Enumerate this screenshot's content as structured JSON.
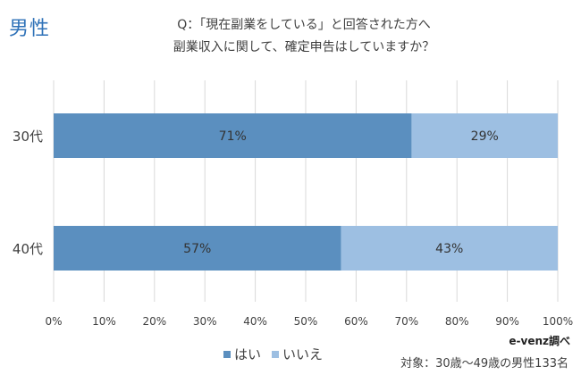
{
  "header": {
    "corner_label": "男性",
    "title_line1": "Q：「現在副業をしている」と回答された方へ",
    "title_line2": "副業収入に関して、確定申告はしていますか？"
  },
  "footer": {
    "source": "e-venz調べ",
    "target": "対象：30歳～49歳の男性133名"
  },
  "chart_data": {
    "type": "bar",
    "orientation": "horizontal",
    "stacked": true,
    "title": "Q：「現在副業をしている」と回答された方へ 副業収入に関して、確定申告はしていますか？",
    "categories": [
      "30代",
      "40代"
    ],
    "series": [
      {
        "name": "はい",
        "values": [
          71,
          57
        ],
        "labels": [
          "71%",
          "57%"
        ],
        "color": "#5b8fbf"
      },
      {
        "name": "いいえ",
        "values": [
          29,
          43
        ],
        "labels": [
          "29%",
          "43%"
        ],
        "color": "#9dbfe2"
      }
    ],
    "xlim": [
      0,
      100
    ],
    "x_ticks": [
      "0%",
      "10%",
      "20%",
      "30%",
      "40%",
      "50%",
      "60%",
      "70%",
      "80%",
      "90%",
      "100%"
    ],
    "grid": true,
    "legend_position": "bottom"
  }
}
